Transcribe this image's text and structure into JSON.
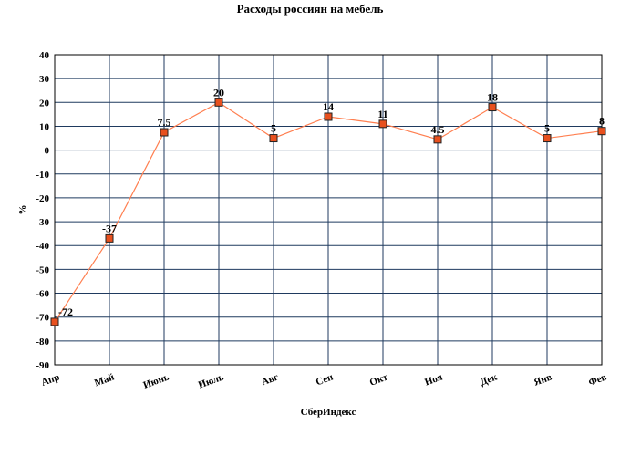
{
  "chart_data": {
    "type": "line",
    "title": "Расходы россиян на мебель",
    "x_label": "СберИндекс",
    "y_label": "%",
    "categories": [
      "Апр",
      "Май",
      "Июнь",
      "Июль",
      "Авг",
      "Сен",
      "Окт",
      "Ноя",
      "Дек",
      "Янв",
      "Фев"
    ],
    "series": [
      {
        "name": "Расходы",
        "color": "#ff7f50",
        "marker_color": "#e8501e",
        "values": [
          -72,
          -37,
          7.5,
          20,
          5,
          14,
          11,
          4.5,
          18,
          5,
          8
        ]
      }
    ],
    "ylim": [
      -90,
      40
    ],
    "yticks": [
      -90,
      -80,
      -70,
      -60,
      -50,
      -40,
      -30,
      -20,
      -10,
      0,
      10,
      20,
      30,
      40
    ],
    "grid": true,
    "grid_color": "#1f3a5f"
  }
}
